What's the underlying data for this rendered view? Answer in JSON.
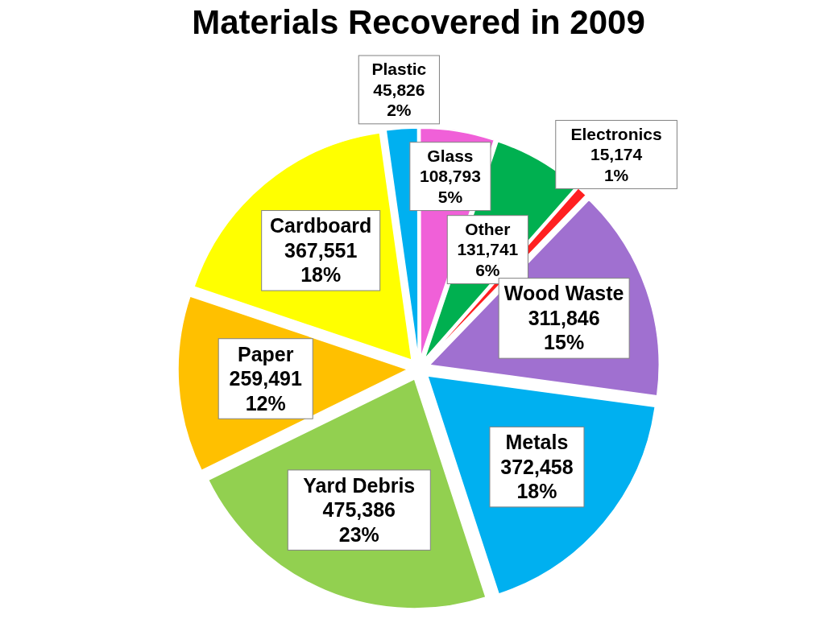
{
  "chart_data": {
    "type": "pie",
    "title": "Materials Recovered in 2009",
    "categories": [
      "Plastic",
      "Glass",
      "Other",
      "Electronics",
      "Wood Waste",
      "Metals",
      "Yard Debris",
      "Paper",
      "Cardboard"
    ],
    "values": [
      45826,
      108793,
      131741,
      15174,
      311846,
      372458,
      475386,
      259491,
      367551
    ],
    "colors": [
      "#00b0f0",
      "#f060d8",
      "#00b050",
      "#ff2020",
      "#a070d0",
      "#00b0f0",
      "#92d050",
      "#ffc000",
      "#ffff00"
    ],
    "value_labels": [
      "45,826",
      "108,793",
      "131,741",
      "15,174",
      "311,846",
      "372,458",
      "475,386",
      "259,491",
      "367,551"
    ],
    "annotations": [
      "2%",
      "5%",
      "6%",
      "1%",
      "15%",
      "18%",
      "23%",
      "12%",
      "18%"
    ]
  }
}
